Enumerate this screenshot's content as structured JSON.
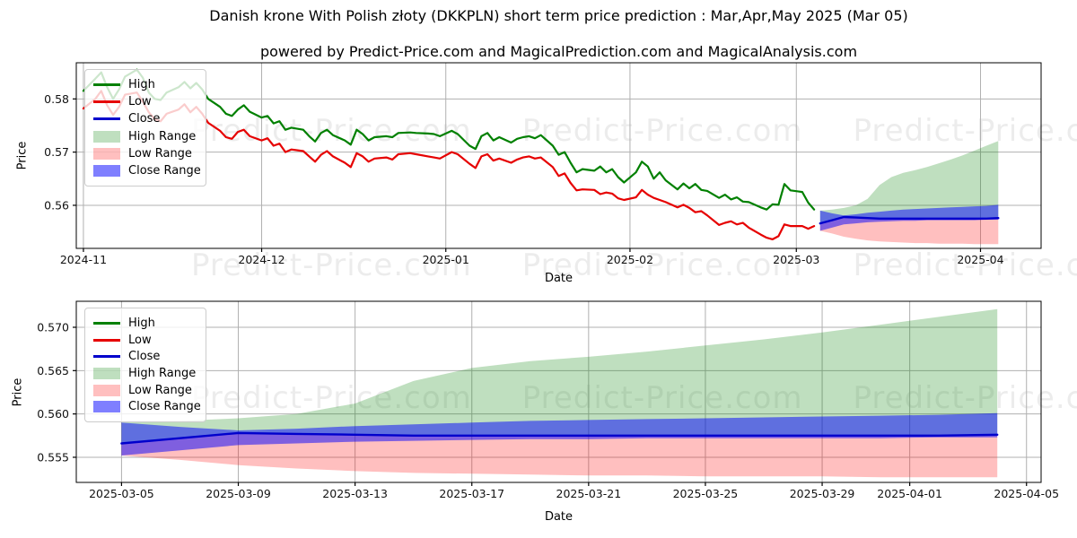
{
  "title": "Danish krone With Polish złoty (DKKPLN) short term price prediction : Mar,Apr,May 2025 (Mar 05)",
  "subtitle": "powered by Predict-Price.com and MagicalPrediction.com and MagicalAnalysis.com",
  "watermark": {
    "text": "Predict-Price.com"
  },
  "colors": {
    "high": "#008000",
    "low": "#e60000",
    "close": "#0000cc",
    "high_range": "rgba(0,128,0,0.25)",
    "low_range": "rgba(255,0,0,0.25)",
    "close_range": "rgba(0,0,255,0.5)",
    "grid": "#b0b0b0",
    "axis": "#000000",
    "tick_text": "#111111"
  },
  "legend": {
    "items": [
      {
        "label": "High",
        "kind": "line",
        "color_key": "high"
      },
      {
        "label": "Low",
        "kind": "line",
        "color_key": "low"
      },
      {
        "label": "Close",
        "kind": "line",
        "color_key": "close"
      },
      {
        "label": "High Range",
        "kind": "fill",
        "color_key": "high_range"
      },
      {
        "label": "Low Range",
        "kind": "fill",
        "color_key": "low_range"
      },
      {
        "label": "Close Range",
        "kind": "fill",
        "color_key": "close_range"
      }
    ]
  },
  "history": {
    "dates": [
      "2024-11-01",
      "2024-11-03",
      "2024-11-04",
      "2024-11-05",
      "2024-11-06",
      "2024-11-07",
      "2024-11-08",
      "2024-11-10",
      "2024-11-11",
      "2024-11-12",
      "2024-11-13",
      "2024-11-14",
      "2024-11-15",
      "2024-11-17",
      "2024-11-18",
      "2024-11-19",
      "2024-11-20",
      "2024-11-21",
      "2024-11-22",
      "2024-11-24",
      "2024-11-25",
      "2024-11-26",
      "2024-11-27",
      "2024-11-28",
      "2024-11-29",
      "2024-12-01",
      "2024-12-02",
      "2024-12-03",
      "2024-12-04",
      "2024-12-05",
      "2024-12-06",
      "2024-12-08",
      "2024-12-09",
      "2024-12-10",
      "2024-12-11",
      "2024-12-12",
      "2024-12-13",
      "2024-12-15",
      "2024-12-16",
      "2024-12-17",
      "2024-12-18",
      "2024-12-19",
      "2024-12-20",
      "2024-12-22",
      "2024-12-23",
      "2024-12-24",
      "2024-12-26",
      "2024-12-27",
      "2024-12-29",
      "2024-12-30",
      "2024-12-31",
      "2025-01-02",
      "2025-01-03",
      "2025-01-05",
      "2025-01-06",
      "2025-01-07",
      "2025-01-08",
      "2025-01-09",
      "2025-01-10",
      "2025-01-12",
      "2025-01-13",
      "2025-01-14",
      "2025-01-15",
      "2025-01-16",
      "2025-01-17",
      "2025-01-19",
      "2025-01-20",
      "2025-01-21",
      "2025-01-22",
      "2025-01-23",
      "2025-01-24",
      "2025-01-26",
      "2025-01-27",
      "2025-01-28",
      "2025-01-29",
      "2025-01-30",
      "2025-01-31",
      "2025-02-02",
      "2025-02-03",
      "2025-02-04",
      "2025-02-05",
      "2025-02-06",
      "2025-02-07",
      "2025-02-09",
      "2025-02-10",
      "2025-02-11",
      "2025-02-12",
      "2025-02-13",
      "2025-02-14",
      "2025-02-16",
      "2025-02-17",
      "2025-02-18",
      "2025-02-19",
      "2025-02-20",
      "2025-02-21",
      "2025-02-23",
      "2025-02-24",
      "2025-02-25",
      "2025-02-26",
      "2025-02-27",
      "2025-02-28",
      "2025-03-02",
      "2025-03-03",
      "2025-03-04"
    ],
    "high": [
      0.5815,
      0.5838,
      0.585,
      0.5822,
      0.58,
      0.5818,
      0.5842,
      0.5855,
      0.584,
      0.5812,
      0.58,
      0.5798,
      0.5812,
      0.5822,
      0.5832,
      0.582,
      0.583,
      0.5818,
      0.58,
      0.5785,
      0.5772,
      0.5768,
      0.578,
      0.5788,
      0.5776,
      0.5765,
      0.5768,
      0.5754,
      0.5758,
      0.5742,
      0.5746,
      0.5742,
      0.573,
      0.572,
      0.5736,
      0.5742,
      0.5732,
      0.5722,
      0.5714,
      0.5742,
      0.5734,
      0.5722,
      0.5728,
      0.573,
      0.5728,
      0.5736,
      0.5737,
      0.5736,
      0.5735,
      0.5734,
      0.573,
      0.574,
      0.5734,
      0.5712,
      0.5706,
      0.573,
      0.5736,
      0.5722,
      0.5728,
      0.5718,
      0.5725,
      0.5728,
      0.573,
      0.5726,
      0.5732,
      0.5712,
      0.5695,
      0.57,
      0.568,
      0.5662,
      0.5668,
      0.5665,
      0.5673,
      0.5662,
      0.5668,
      0.5653,
      0.5643,
      0.5662,
      0.5682,
      0.5673,
      0.565,
      0.5662,
      0.5647,
      0.563,
      0.5641,
      0.5632,
      0.564,
      0.5629,
      0.5627,
      0.5614,
      0.562,
      0.5611,
      0.5615,
      0.5607,
      0.5606,
      0.5596,
      0.5592,
      0.5602,
      0.5601,
      0.564,
      0.5628,
      0.5625,
      0.5605,
      0.5592
    ],
    "low": [
      0.5782,
      0.58,
      0.5815,
      0.5788,
      0.577,
      0.5785,
      0.5808,
      0.5812,
      0.5795,
      0.5775,
      0.5762,
      0.5758,
      0.5772,
      0.578,
      0.579,
      0.5775,
      0.5785,
      0.5772,
      0.5755,
      0.574,
      0.5728,
      0.5725,
      0.5738,
      0.5742,
      0.573,
      0.5722,
      0.5726,
      0.5712,
      0.5716,
      0.57,
      0.5705,
      0.5702,
      0.5692,
      0.5682,
      0.5695,
      0.5702,
      0.5692,
      0.568,
      0.5672,
      0.5698,
      0.5692,
      0.5682,
      0.5688,
      0.569,
      0.5686,
      0.5696,
      0.5698,
      0.5696,
      0.5692,
      0.569,
      0.5688,
      0.57,
      0.5696,
      0.5678,
      0.567,
      0.5692,
      0.5696,
      0.5684,
      0.5688,
      0.568,
      0.5686,
      0.569,
      0.5692,
      0.5688,
      0.569,
      0.5672,
      0.5655,
      0.566,
      0.5642,
      0.5628,
      0.563,
      0.5629,
      0.5621,
      0.5624,
      0.5622,
      0.5613,
      0.561,
      0.5615,
      0.5629,
      0.562,
      0.5614,
      0.561,
      0.5606,
      0.5596,
      0.5601,
      0.5595,
      0.5587,
      0.5589,
      0.5581,
      0.5563,
      0.5567,
      0.557,
      0.5564,
      0.5567,
      0.5558,
      0.5545,
      0.5539,
      0.5536,
      0.5542,
      0.5564,
      0.5561,
      0.5561,
      0.5556,
      0.5561
    ]
  },
  "forecast": {
    "dates": [
      "2025-03-05",
      "2025-03-07",
      "2025-03-09",
      "2025-03-11",
      "2025-03-13",
      "2025-03-15",
      "2025-03-17",
      "2025-03-19",
      "2025-03-21",
      "2025-03-23",
      "2025-03-25",
      "2025-03-27",
      "2025-03-29",
      "2025-03-31",
      "2025-04-02",
      "2025-04-04"
    ],
    "close": [
      0.5566,
      0.5572,
      0.5578,
      0.5577,
      0.5576,
      0.5575,
      0.5575,
      0.5575,
      0.5575,
      0.5575,
      0.5575,
      0.5575,
      0.5575,
      0.5575,
      0.5575,
      0.5576
    ],
    "high_range_top": [
      0.559,
      0.5592,
      0.5595,
      0.56,
      0.5612,
      0.5638,
      0.5653,
      0.5661,
      0.5666,
      0.5672,
      0.5679,
      0.5686,
      0.5694,
      0.5703,
      0.5712,
      0.5721
    ],
    "low_range_bottom": [
      0.5552,
      0.5547,
      0.5541,
      0.5537,
      0.5534,
      0.5532,
      0.5531,
      0.553,
      0.5529,
      0.5529,
      0.5528,
      0.5528,
      0.5528,
      0.5527,
      0.5527,
      0.5527
    ],
    "close_range_top": [
      0.559,
      0.5585,
      0.5581,
      0.5583,
      0.5586,
      0.5588,
      0.559,
      0.5592,
      0.5593,
      0.5594,
      0.5595,
      0.5596,
      0.5597,
      0.5598,
      0.5599,
      0.5601
    ],
    "close_range_bottom": [
      0.5552,
      0.5558,
      0.5564,
      0.5566,
      0.5568,
      0.5569,
      0.557,
      0.5571,
      0.5571,
      0.5572,
      0.5572,
      0.5572,
      0.5572,
      0.5572,
      0.5573,
      0.5573
    ]
  },
  "chart_data": [
    {
      "type": "line",
      "name": "history-with-forecast",
      "xlabel": "Date",
      "ylabel": "Price",
      "grid": true,
      "legend_position": "upper-left",
      "show_history": true,
      "show_forecast": true,
      "xlim_days": [
        -1.2,
        161.2
      ],
      "ylim": [
        0.5519,
        0.5868
      ],
      "x_ticks": [
        {
          "date": "2024-11-01",
          "label": "2024-11"
        },
        {
          "date": "2024-12-01",
          "label": "2024-12"
        },
        {
          "date": "2025-01-01",
          "label": "2025-01"
        },
        {
          "date": "2025-02-01",
          "label": "2025-02"
        },
        {
          "date": "2025-03-01",
          "label": "2025-03"
        },
        {
          "date": "2025-04-01",
          "label": "2025-04"
        }
      ],
      "y_ticks": [
        {
          "value": 0.58,
          "label": "0.58"
        },
        {
          "value": 0.57,
          "label": "0.57"
        },
        {
          "value": 0.56,
          "label": "0.56"
        }
      ]
    },
    {
      "type": "area",
      "name": "forecast-detail",
      "xlabel": "Date",
      "ylabel": "Price",
      "grid": true,
      "legend_position": "upper-left",
      "show_history": false,
      "show_forecast": true,
      "xlim_days": [
        122.45,
        155.5
      ],
      "ylim": [
        0.5521,
        0.573
      ],
      "x_ticks": [
        {
          "date": "2025-03-05",
          "label": "2025-03-05"
        },
        {
          "date": "2025-03-09",
          "label": "2025-03-09"
        },
        {
          "date": "2025-03-13",
          "label": "2025-03-13"
        },
        {
          "date": "2025-03-17",
          "label": "2025-03-17"
        },
        {
          "date": "2025-03-21",
          "label": "2025-03-21"
        },
        {
          "date": "2025-03-25",
          "label": "2025-03-25"
        },
        {
          "date": "2025-03-29",
          "label": "2025-03-29"
        },
        {
          "date": "2025-04-01",
          "label": "2025-04-01"
        },
        {
          "date": "2025-04-05",
          "label": "2025-04-05"
        }
      ],
      "y_ticks": [
        {
          "value": 0.57,
          "label": "0.570"
        },
        {
          "value": 0.565,
          "label": "0.565"
        },
        {
          "value": 0.56,
          "label": "0.560"
        },
        {
          "value": 0.555,
          "label": "0.555"
        }
      ]
    }
  ]
}
